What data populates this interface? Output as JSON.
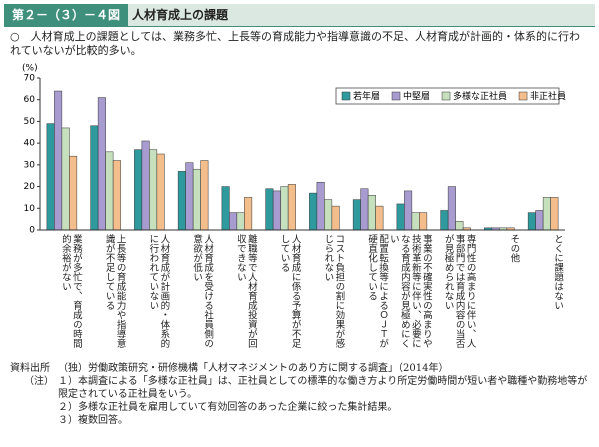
{
  "header": {
    "figure_no": "第２－（３）－４図",
    "title": "人材育成上の課題"
  },
  "subtitle": "○　人材育成上の課題としては、業務多忙、上長等の育成能力や指導意識の不足、人材育成が計画的・体系的に行われていないが比較的多い。",
  "chart_data": {
    "type": "bar",
    "y_label": "(%)",
    "categories": [
      "業務が多忙で、育成の時間的余裕がない",
      "上長等の育成能力や指導意識が不足している",
      "人材育成が計画的・体系的に行われていない",
      "人材育成を受ける社員側の意欲が低い",
      "離職等で人材育成投資が回収できない",
      "人材育成に係る予算が不足している",
      "コスト負担の割に効果が感じられない",
      "配置転換等によるＯＪＴが硬直化している",
      "事業の不確実性の高まりや技術革新等に伴い、必要になる育成内容が見極めにくい",
      "専門性の高まりに伴い、人事部門では育成内容の当否が見極められない",
      "その他",
      "とくに課題はない"
    ],
    "series": [
      {
        "name": "若年層",
        "color": "#2f9a9e",
        "values": [
          49,
          48,
          37,
          27,
          20,
          19,
          17,
          14,
          12,
          9,
          1,
          8
        ]
      },
      {
        "name": "中堅層",
        "color": "#a79bd0",
        "values": [
          64,
          61,
          41,
          31,
          8,
          18,
          22,
          19,
          18,
          20,
          1,
          9
        ]
      },
      {
        "name": "多様な正社員",
        "color": "#c6e0bd",
        "values": [
          47,
          36,
          37,
          28,
          8,
          20,
          14,
          16,
          8,
          4,
          1,
          15
        ]
      },
      {
        "name": "非正社員",
        "color": "#f4be8c",
        "values": [
          34,
          32,
          35,
          32,
          15,
          21,
          11,
          11,
          8,
          1,
          1,
          15
        ]
      }
    ],
    "ylim": [
      0,
      70
    ],
    "yticks": [
      0,
      10,
      20,
      30,
      40,
      50,
      60,
      70
    ],
    "legend": "upper right"
  },
  "footnotes": {
    "source_label": "資料出所",
    "source": "（独）労働政策研究・研修機構「人材マネジメントのあり方に関する調査」（2014年）",
    "notes_label": "（注）",
    "notes": [
      "１）本調査による「多様な正社員」は、正社員としての標準的な働き方より所定労働時間が短い者や職種や勤務地等が限定されている正社員をいう。",
      "２）多様な正社員を雇用していて有効回答のあった企業に絞った集計結果。",
      "３）複数回答。"
    ]
  }
}
